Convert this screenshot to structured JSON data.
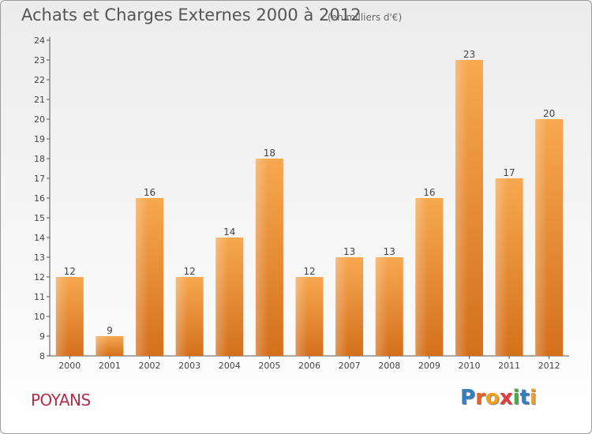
{
  "header": {
    "title": "Achats et Charges Externes 2000 à 2012",
    "subtitle": "(en milliers d'€)"
  },
  "footer": {
    "commune": "POYANS",
    "logo_letters": [
      {
        "ch": "P",
        "color": "#2f7fc1"
      },
      {
        "ch": "r",
        "color": "#e8612c"
      },
      {
        "ch": "o",
        "color": "#f0a020"
      },
      {
        "ch": "x",
        "color": "#e33d3d"
      },
      {
        "ch": "i",
        "color": "#4aa84a"
      },
      {
        "ch": "t",
        "color": "#2f7fc1"
      },
      {
        "ch": "i",
        "color": "#f0a020"
      }
    ]
  },
  "chart_data": {
    "type": "bar",
    "title": "Achats et Charges Externes 2000 à 2012",
    "subtitle": "(en milliers d'€)",
    "categories": [
      "2000",
      "2001",
      "2002",
      "2003",
      "2004",
      "2005",
      "2006",
      "2007",
      "2008",
      "2009",
      "2010",
      "2011",
      "2012"
    ],
    "values": [
      12,
      9,
      16,
      12,
      14,
      18,
      12,
      13,
      13,
      16,
      23,
      17,
      20
    ],
    "ylim": [
      8,
      24
    ],
    "yticks": [
      8,
      9,
      10,
      11,
      12,
      13,
      14,
      15,
      16,
      17,
      18,
      19,
      20,
      21,
      22,
      23,
      24
    ],
    "bar_color": "#f0922f",
    "grid": false
  }
}
